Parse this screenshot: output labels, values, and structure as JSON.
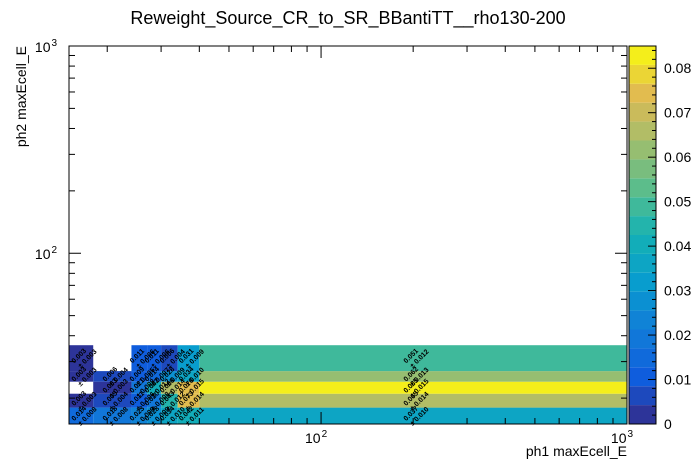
{
  "chart_data": {
    "type": "heatmap",
    "title": "Reweight_Source_CR_to_SR_BBantiTT__rho130-200",
    "xlabel": "ph1 maxEcell_E",
    "ylabel": "ph2 maxEcell_E",
    "x_scale": "log",
    "y_scale": "log",
    "xlim": [
      15,
      1000
    ],
    "ylim": [
      15,
      1000
    ],
    "x_ticks": [
      {
        "value": 100,
        "label": "10",
        "exp": "2"
      },
      {
        "value": 1000,
        "label": "10",
        "exp": "3"
      }
    ],
    "y_ticks": [
      {
        "value": 100,
        "label": "10",
        "exp": "2"
      },
      {
        "value": 1000,
        "label": "10",
        "exp": "3"
      }
    ],
    "x_edges": [
      15,
      18,
      24,
      27,
      30,
      34,
      40,
      1000
    ],
    "y_edges": [
      15,
      18,
      21,
      24,
      27,
      36,
      1000
    ],
    "z_range": [
      0,
      0.085
    ],
    "colorbar_ticks": [
      "0",
      "0.01",
      "0.02",
      "0.03",
      "0.04",
      "0.05",
      "0.06",
      "0.07",
      "0.08"
    ],
    "colorbar_tick_values": [
      0,
      0.01,
      0.02,
      0.03,
      0.04,
      0.05,
      0.06,
      0.07,
      0.08
    ],
    "cells": [
      {
        "x": 0,
        "y": 0,
        "z": 0.014,
        "err": 0.008
      },
      {
        "x": 1,
        "y": 0,
        "z": 0.018,
        "err": 0.008
      },
      {
        "x": 2,
        "y": 0,
        "z": 0.023,
        "err": 0.009
      },
      {
        "x": 3,
        "y": 0,
        "z": 0.028,
        "err": 0.009
      },
      {
        "x": 4,
        "y": 0,
        "z": 0.034,
        "err": 0.01
      },
      {
        "x": 5,
        "y": 0,
        "z": 0.042,
        "err": 0.011
      },
      {
        "x": 6,
        "y": 0,
        "z": 0.037,
        "err": 0.01
      },
      {
        "x": 0,
        "y": 1,
        "z": 0.003,
        "err": 0.003
      },
      {
        "x": 1,
        "y": 1,
        "z": 0.005,
        "err": 0.004
      },
      {
        "x": 2,
        "y": 1,
        "z": 0.011,
        "err": 0.006
      },
      {
        "x": 3,
        "y": 1,
        "z": 0.02,
        "err": 0.008
      },
      {
        "x": 4,
        "y": 1,
        "z": 0.043,
        "err": 0.012
      },
      {
        "x": 5,
        "y": 1,
        "z": 0.073,
        "err": 0.014
      },
      {
        "x": 6,
        "y": 1,
        "z": 0.065,
        "err": 0.014
      },
      {
        "x": 0,
        "y": 2,
        "z": null,
        "err": null
      },
      {
        "x": 1,
        "y": 2,
        "z": 0.003,
        "err": 0.003
      },
      {
        "x": 2,
        "y": 2,
        "z": 0.021,
        "err": 0.008
      },
      {
        "x": 3,
        "y": 2,
        "z": 0.042,
        "err": 0.012
      },
      {
        "x": 4,
        "y": 2,
        "z": 0.066,
        "err": 0.014
      },
      {
        "x": 5,
        "y": 2,
        "z": 0.076,
        "err": 0.015
      },
      {
        "x": 6,
        "y": 2,
        "z": 0.085,
        "err": 0.015
      },
      {
        "x": 0,
        "y": 3,
        "z": 0.003,
        "err": 0.003
      },
      {
        "x": 1,
        "y": 3,
        "z": 0.006,
        "err": 0.004
      },
      {
        "x": 2,
        "y": 3,
        "z": 0.009,
        "err": 0.005
      },
      {
        "x": 3,
        "y": 3,
        "z": 0.014,
        "err": 0.007
      },
      {
        "x": 4,
        "y": 3,
        "z": 0.028,
        "err": 0.009
      },
      {
        "x": 5,
        "y": 3,
        "z": 0.034,
        "err": 0.01
      },
      {
        "x": 6,
        "y": 3,
        "z": 0.062,
        "err": 0.013
      },
      {
        "x": 0,
        "y": 4,
        "z": 0.003,
        "err": 0.003
      },
      {
        "x": 1,
        "y": 4,
        "z": null,
        "err": null
      },
      {
        "x": 2,
        "y": 4,
        "z": 0.011,
        "err": 0.006
      },
      {
        "x": 3,
        "y": 4,
        "z": 0.011,
        "err": 0.006
      },
      {
        "x": 4,
        "y": 4,
        "z": 0.006,
        "err": 0.004
      },
      {
        "x": 5,
        "y": 4,
        "z": 0.031,
        "err": 0.009
      },
      {
        "x": 6,
        "y": 4,
        "z": 0.051,
        "err": 0.012
      }
    ]
  }
}
